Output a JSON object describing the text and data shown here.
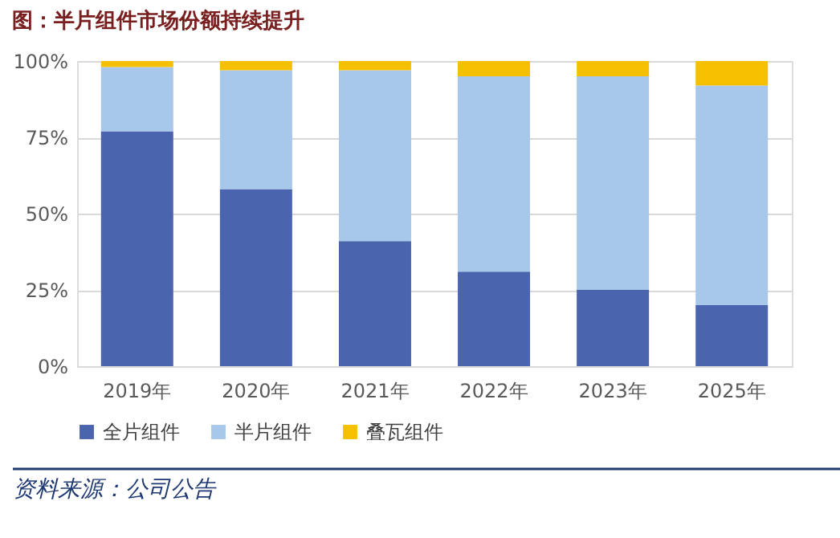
{
  "chart_data": {
    "type": "bar",
    "title": "图：半片组件市场份额持续提升",
    "stacked": true,
    "categories": [
      "2019年",
      "2020年",
      "2021年",
      "2022年",
      "2023年",
      "2025年"
    ],
    "series": [
      {
        "name": "全片组件",
        "color": "#4a64ad",
        "values": [
          77,
          58,
          41,
          31,
          25,
          20
        ]
      },
      {
        "name": "半片组件",
        "color": "#a7c7eb",
        "values": [
          21,
          39,
          56,
          64,
          70,
          72
        ]
      },
      {
        "name": "叠瓦组件",
        "color": "#f5c000",
        "values": [
          2,
          3,
          3,
          5,
          5,
          8
        ]
      }
    ],
    "ylim": [
      0,
      100
    ],
    "yticks": [
      {
        "value": 0,
        "label": "0%"
      },
      {
        "value": 25,
        "label": "25%"
      },
      {
        "value": 50,
        "label": "50%"
      },
      {
        "value": 75,
        "label": "75%"
      },
      {
        "value": 100,
        "label": "100%"
      }
    ],
    "grid": "y",
    "legend": "bottom",
    "annotations": [
      "资料来源：公司公告"
    ]
  }
}
